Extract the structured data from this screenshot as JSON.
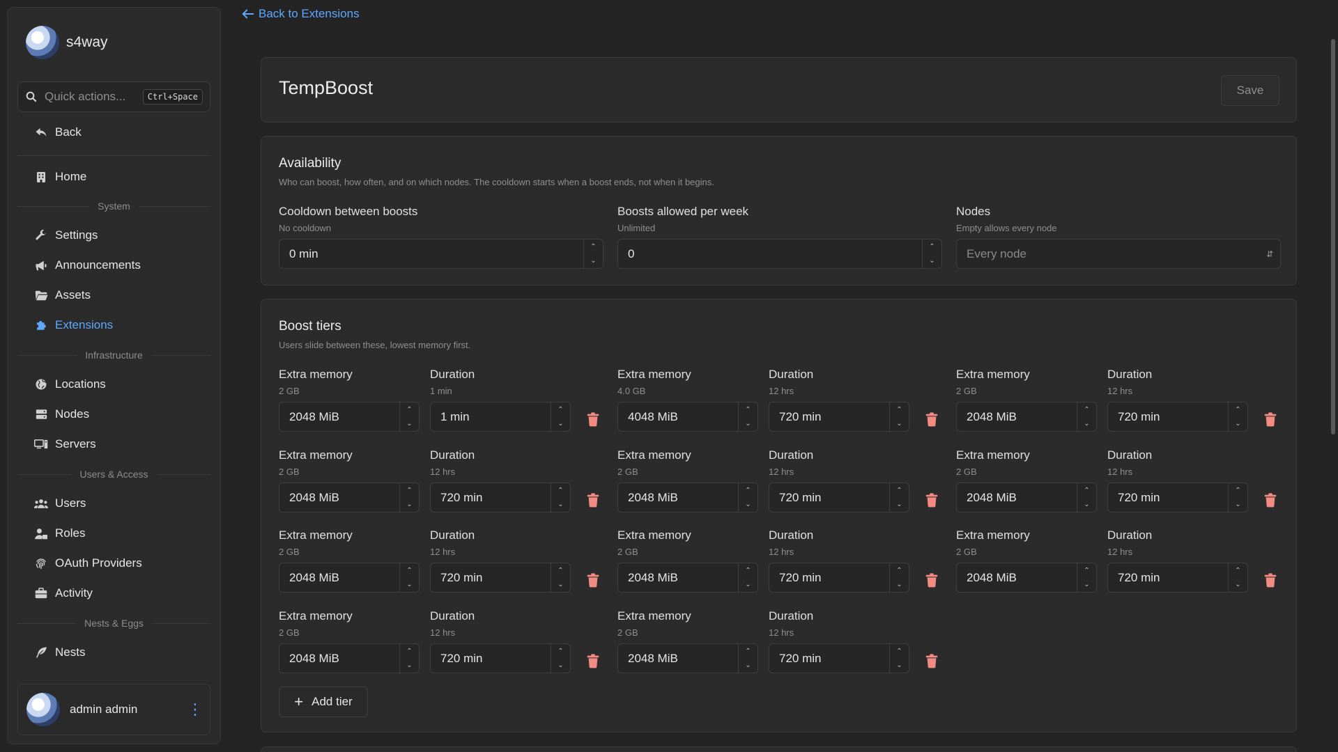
{
  "sidebar": {
    "brand": "s4way",
    "quick_actions": {
      "placeholder": "Quick actions...",
      "shortcut": "Ctrl+Space"
    },
    "back": "Back",
    "home": "Home",
    "sections": {
      "system": "System",
      "infrastructure": "Infrastructure",
      "users_access": "Users & Access",
      "nests_eggs": "Nests & Eggs"
    },
    "items": {
      "settings": "Settings",
      "announcements": "Announcements",
      "assets": "Assets",
      "extensions": "Extensions",
      "locations": "Locations",
      "nodes": "Nodes",
      "servers": "Servers",
      "users": "Users",
      "roles": "Roles",
      "oauth": "OAuth Providers",
      "activity": "Activity",
      "nests": "Nests"
    },
    "user": {
      "name": "admin admin"
    },
    "accent_color": "#5fa8ff"
  },
  "header": {
    "back_link": "Back to Extensions"
  },
  "extension": {
    "title": "TempBoost",
    "save_label": "Save"
  },
  "availability": {
    "title": "Availability",
    "description": "Who can boost, how often, and on which nodes. The cooldown starts when a boost ends, not when it begins.",
    "cooldown": {
      "label": "Cooldown between boosts",
      "hint": "No cooldown",
      "value": "0 min"
    },
    "per_week": {
      "label": "Boosts allowed per week",
      "hint": "Unlimited",
      "value": "0"
    },
    "nodes": {
      "label": "Nodes",
      "hint": "Empty allows every node",
      "placeholder": "Every node"
    }
  },
  "boost_tiers": {
    "title": "Boost tiers",
    "description": "Users slide between these, lowest memory first.",
    "memory_label": "Extra memory",
    "duration_label": "Duration",
    "add_label": "Add tier",
    "delete_color": "#f28b82",
    "tiers": [
      {
        "memory_hint": "2 GB",
        "memory": "2048 MiB",
        "duration_hint": "1 min",
        "duration": "1 min"
      },
      {
        "memory_hint": "4.0 GB",
        "memory": "4048 MiB",
        "duration_hint": "12 hrs",
        "duration": "720 min"
      },
      {
        "memory_hint": "2 GB",
        "memory": "2048 MiB",
        "duration_hint": "12 hrs",
        "duration": "720 min"
      },
      {
        "memory_hint": "2 GB",
        "memory": "2048 MiB",
        "duration_hint": "12 hrs",
        "duration": "720 min"
      },
      {
        "memory_hint": "2 GB",
        "memory": "2048 MiB",
        "duration_hint": "12 hrs",
        "duration": "720 min"
      },
      {
        "memory_hint": "2 GB",
        "memory": "2048 MiB",
        "duration_hint": "12 hrs",
        "duration": "720 min"
      },
      {
        "memory_hint": "2 GB",
        "memory": "2048 MiB",
        "duration_hint": "12 hrs",
        "duration": "720 min"
      },
      {
        "memory_hint": "2 GB",
        "memory": "2048 MiB",
        "duration_hint": "12 hrs",
        "duration": "720 min"
      },
      {
        "memory_hint": "2 GB",
        "memory": "2048 MiB",
        "duration_hint": "12 hrs",
        "duration": "720 min"
      },
      {
        "memory_hint": "2 GB",
        "memory": "2048 MiB",
        "duration_hint": "12 hrs",
        "duration": "720 min"
      },
      {
        "memory_hint": "2 GB",
        "memory": "2048 MiB",
        "duration_hint": "12 hrs",
        "duration": "720 min"
      }
    ]
  }
}
